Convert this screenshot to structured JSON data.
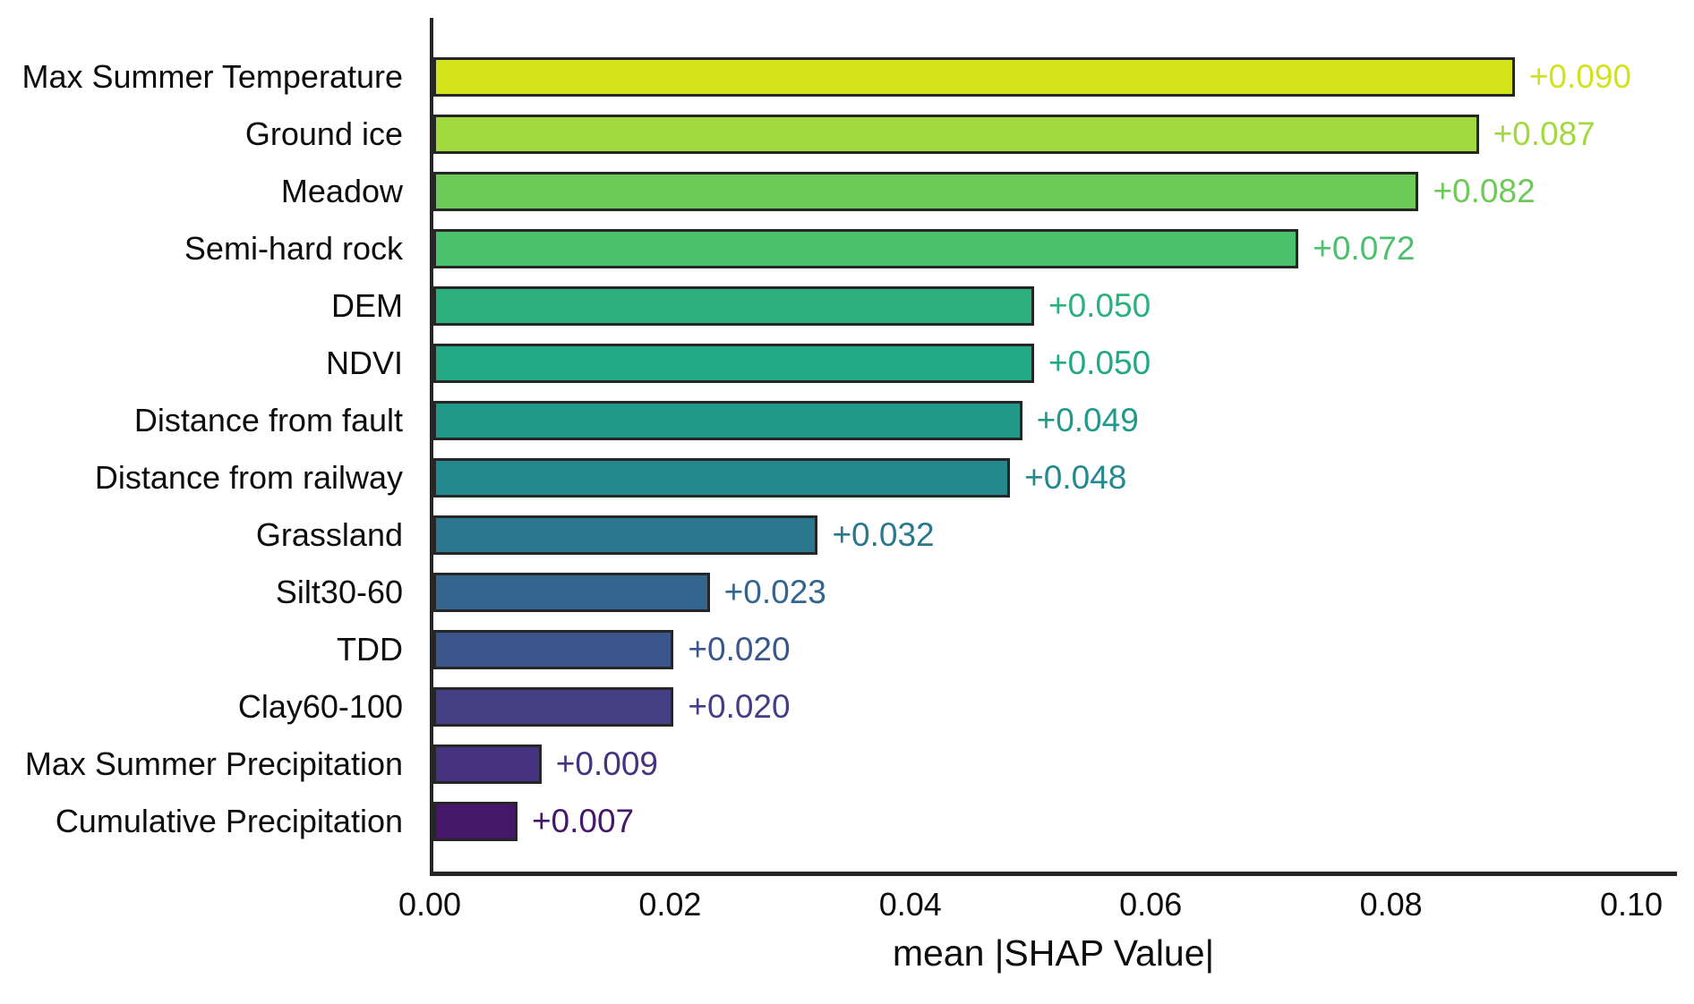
{
  "chart_data": {
    "type": "bar",
    "orientation": "horizontal",
    "title": "",
    "xlabel": "mean |SHAP Value|",
    "ylabel": "",
    "xlim": [
      0,
      0.1035
    ],
    "grid": false,
    "legend": false,
    "categories": [
      "Max Summer Temperature",
      "Ground ice",
      "Meadow",
      "Semi-hard rock",
      "DEM",
      "NDVI",
      "Distance from fault",
      "Distance from railway",
      "Grassland",
      "Silt30-60",
      "TDD",
      "Clay60-100",
      "Max Summer Precipitation",
      "Cumulative Precipitation"
    ],
    "values": [
      0.09,
      0.087,
      0.082,
      0.072,
      0.05,
      0.05,
      0.049,
      0.048,
      0.032,
      0.023,
      0.02,
      0.02,
      0.009,
      0.007
    ],
    "value_labels": [
      "+0.090",
      "+0.087",
      "+0.082",
      "+0.072",
      "+0.050",
      "+0.050",
      "+0.049",
      "+0.048",
      "+0.032",
      "+0.023",
      "+0.020",
      "+0.020",
      "+0.009",
      "+0.007"
    ],
    "bar_colors": [
      "#d2e21b",
      "#a2d93c",
      "#6cca56",
      "#4bc06d",
      "#2cb17e",
      "#22a884",
      "#21998a",
      "#23898e",
      "#2b788e",
      "#33658e",
      "#3b568b",
      "#443e85",
      "#453380",
      "#45176b"
    ],
    "x_ticks": [
      "0.00",
      "0.02",
      "0.04",
      "0.06",
      "0.08",
      "0.10"
    ],
    "x_tick_values": [
      0.0,
      0.02,
      0.04,
      0.06,
      0.08,
      0.1
    ],
    "bar_outline_color": "#262626",
    "axis_spine_color": "#262626"
  }
}
